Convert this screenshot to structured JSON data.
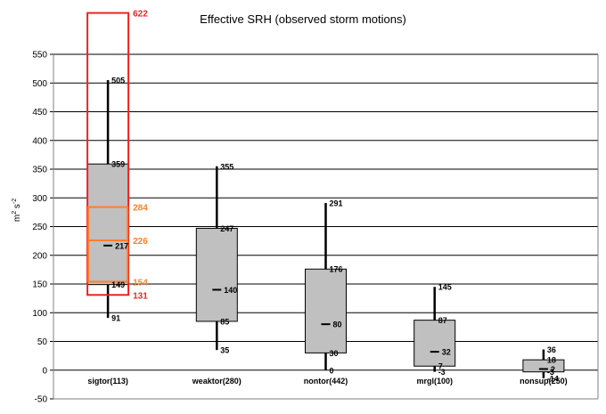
{
  "chart_data": {
    "type": "box",
    "title": "Effective SRH (observed storm motions)",
    "xlabel": "",
    "ylabel": "m² s⁻²",
    "ylabel_parts": [
      "m",
      "2",
      " s",
      "-2"
    ],
    "ylim": [
      -50,
      550
    ],
    "yticks": [
      -50,
      0,
      50,
      100,
      150,
      200,
      250,
      300,
      350,
      400,
      450,
      500,
      550
    ],
    "grid": true,
    "categories": [
      "sigtor(113)",
      "weaktor(280)",
      "nontor(442)",
      "mrgl(100)",
      "nonsup(250)"
    ],
    "boxes": [
      {
        "category": "sigtor(113)",
        "p10": 91,
        "p25": 149,
        "median": 217,
        "p75": 359,
        "p90": 505,
        "labels": {
          "p10": "91",
          "p25": "149",
          "median": "217",
          "p75": "359",
          "p90": "505"
        }
      },
      {
        "category": "weaktor(280)",
        "p10": 35,
        "p25": 85,
        "median": 140,
        "p75": 247,
        "p90": 355,
        "labels": {
          "p10": "35",
          "p25": "85",
          "median": "140",
          "p75": "247",
          "p90": "355"
        }
      },
      {
        "category": "nontor(442)",
        "p10": 0,
        "p25": 30,
        "median": 80,
        "p75": 176,
        "p90": 291,
        "labels": {
          "p10": "0",
          "p25": "30",
          "median": "80",
          "p75": "176",
          "p90": "291"
        }
      },
      {
        "category": "mrgl(100)",
        "p10": -3,
        "p25": 7,
        "median": 32,
        "p75": 87,
        "p90": 145,
        "labels": {
          "p10": "-3",
          "p25": "7",
          "median": "32",
          "p75": "87",
          "p90": "145"
        }
      },
      {
        "category": "nonsup(250)",
        "p10": -14,
        "p25": -3,
        "median": 2,
        "p75": 18,
        "p90": 36,
        "labels": {
          "p10": "-14",
          "p25": "-3",
          "median": "2",
          "p75": "18",
          "p90": "36"
        }
      }
    ],
    "overlay": {
      "category": "sigtor(113)",
      "outer_box": {
        "low": 131,
        "high": 622,
        "color": "#ee2222",
        "labels": {
          "low": "131",
          "high": "622"
        }
      },
      "inner_box": {
        "low": 154,
        "median": 226,
        "high": 284,
        "color": "#ff7f2a",
        "labels": {
          "low": "154",
          "median": "226",
          "high": "284"
        }
      }
    },
    "colors": {
      "box_fill": "#c0c0c0",
      "whisker": "#000000",
      "grid": "#000000"
    }
  }
}
